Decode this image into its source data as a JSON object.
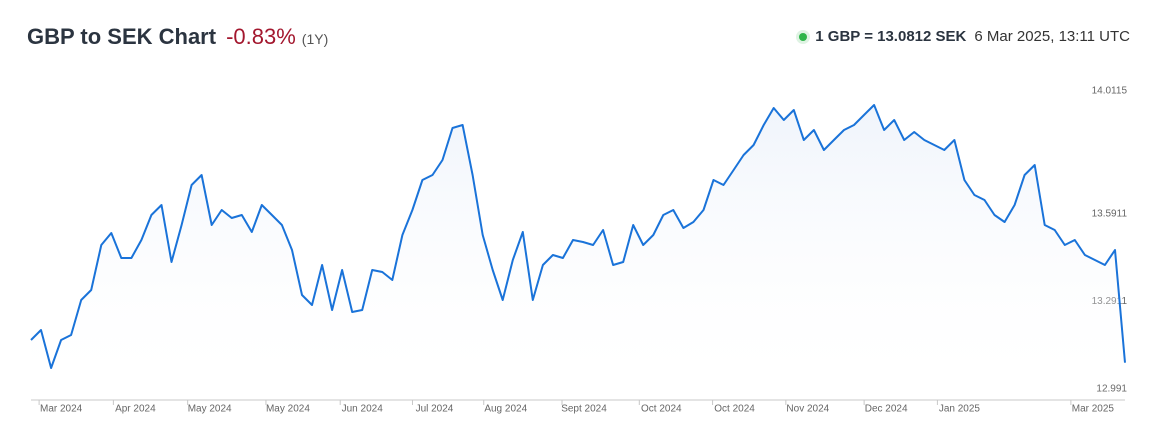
{
  "chart_data": {
    "type": "line",
    "title": "GBP to SEK Chart",
    "change": "-0.83%",
    "period": "(1Y)",
    "rate": "1 GBP = 13.0812 SEK",
    "timestamp": "6 Mar 2025, 13:11 UTC",
    "color": "#1a73d9",
    "change_color": "#a3172e",
    "xlim": [
      0,
      109
    ],
    "xticks": [
      {
        "value": 3,
        "label": "Mar 2024"
      },
      {
        "value": 10.4,
        "label": "Apr 2024"
      },
      {
        "value": 17.8,
        "label": "May 2024"
      },
      {
        "value": 25.6,
        "label": "May 2024"
      },
      {
        "value": 33,
        "label": "Jun 2024"
      },
      {
        "value": 40.2,
        "label": "Jul 2024"
      },
      {
        "value": 47.3,
        "label": "Aug 2024"
      },
      {
        "value": 55.1,
        "label": "Sept 2024"
      },
      {
        "value": 62.8,
        "label": "Oct 2024"
      },
      {
        "value": 70.1,
        "label": "Oct 2024"
      },
      {
        "value": 77.4,
        "label": "Nov 2024"
      },
      {
        "value": 85.2,
        "label": "Dec 2024"
      },
      {
        "value": 92.5,
        "label": "Jan 2025"
      },
      {
        "value": 105.8,
        "label": "Mar 2025"
      }
    ],
    "ylim": [
      12.9533,
      14.0836
    ],
    "yticks": [
      12.991,
      13.2911,
      13.5911,
      14.0115
    ],
    "values": [
      13.1588,
      13.1931,
      13.0629,
      13.1588,
      13.1759,
      13.2958,
      13.3301,
      13.4842,
      13.5253,
      13.4397,
      13.4397,
      13.5013,
      13.587,
      13.6212,
      13.426,
      13.5527,
      13.6897,
      13.724,
      13.5527,
      13.6041,
      13.5767,
      13.587,
      13.5287,
      13.6212,
      13.587,
      13.5527,
      13.4671,
      13.313,
      13.2787,
      13.4157,
      13.2616,
      13.3986,
      13.2547,
      13.2616,
      13.3986,
      13.3917,
      13.3643,
      13.5185,
      13.6041,
      13.7068,
      13.724,
      13.7753,
      13.8849,
      13.8952,
      13.724,
      13.5185,
      13.3986,
      13.2958,
      13.4328,
      13.5287,
      13.2958,
      13.4157,
      13.45,
      13.4397,
      13.5013,
      13.4945,
      13.4842,
      13.5356,
      13.4157,
      13.426,
      13.5527,
      13.4842,
      13.5185,
      13.587,
      13.6041,
      13.5424,
      13.563,
      13.6041,
      13.7068,
      13.6897,
      13.7411,
      13.7924,
      13.8267,
      13.8952,
      13.9534,
      13.9123,
      13.9466,
      13.8438,
      13.8781,
      13.8096,
      13.8438,
      13.8781,
      13.8952,
      13.9295,
      13.9637,
      13.8781,
      13.9123,
      13.8438,
      13.8712,
      13.8438,
      13.8267,
      13.8096,
      13.8438,
      13.7068,
      13.6555,
      13.6383,
      13.587,
      13.563,
      13.6212,
      13.724,
      13.7582,
      13.5527,
      13.5356,
      13.4842,
      13.5013,
      13.45,
      13.4328,
      13.4157,
      13.4671,
      13.0812
    ]
  }
}
